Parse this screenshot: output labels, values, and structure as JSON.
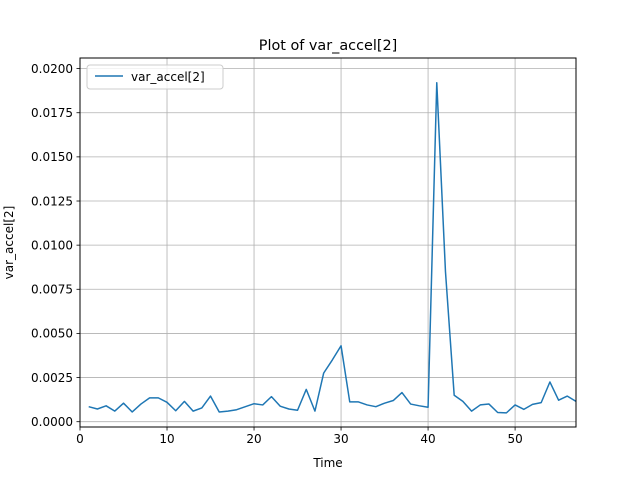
{
  "chart_data": {
    "type": "line",
    "title": "Plot of var_accel[2]",
    "xlabel": "Time",
    "ylabel": "var_accel[2]",
    "xlim": [
      0,
      57
    ],
    "ylim": [
      -0.0003,
      0.0206
    ],
    "grid": true,
    "legend_position": "upper left",
    "x_ticks": [
      0,
      10,
      20,
      30,
      40,
      50
    ],
    "x_tick_labels": [
      "0",
      "10",
      "20",
      "30",
      "40",
      "50"
    ],
    "y_ticks": [
      0.0,
      0.0025,
      0.005,
      0.0075,
      0.01,
      0.0125,
      0.015,
      0.0175,
      0.02
    ],
    "y_tick_labels": [
      "0.0000",
      "0.0025",
      "0.0050",
      "0.0075",
      "0.0100",
      "0.0125",
      "0.0150",
      "0.0175",
      "0.0200"
    ],
    "series": [
      {
        "name": "var_accel[2]",
        "color": "#1f77b4",
        "x": [
          1,
          2,
          3,
          4,
          5,
          6,
          7,
          8,
          9,
          10,
          11,
          12,
          13,
          14,
          15,
          16,
          17,
          18,
          19,
          20,
          21,
          22,
          23,
          24,
          25,
          26,
          27,
          28,
          29,
          30,
          31,
          32,
          33,
          34,
          35,
          36,
          37,
          38,
          39,
          40,
          41,
          42,
          43,
          44,
          45,
          46,
          47,
          48,
          49,
          50,
          51,
          52,
          53,
          54,
          55,
          56,
          57
        ],
        "y": [
          0.00085,
          0.00072,
          0.0009,
          0.0006,
          0.00105,
          0.00055,
          0.001,
          0.00135,
          0.00135,
          0.0011,
          0.00062,
          0.00115,
          0.0006,
          0.00078,
          0.00145,
          0.00055,
          0.0006,
          0.00068,
          0.00085,
          0.00102,
          0.00095,
          0.00142,
          0.00088,
          0.00072,
          0.00065,
          0.00183,
          0.0006,
          0.00275,
          0.0035,
          0.0043,
          0.00112,
          0.00112,
          0.00095,
          0.00085,
          0.00105,
          0.0012,
          0.00165,
          0.001,
          0.0009,
          0.00082,
          0.0192,
          0.0085,
          0.0015,
          0.00115,
          0.0006,
          0.00095,
          0.001,
          0.00052,
          0.0005,
          0.00095,
          0.0007,
          0.00098,
          0.00108,
          0.00225,
          0.00122,
          0.00145,
          0.00115
        ]
      }
    ]
  }
}
